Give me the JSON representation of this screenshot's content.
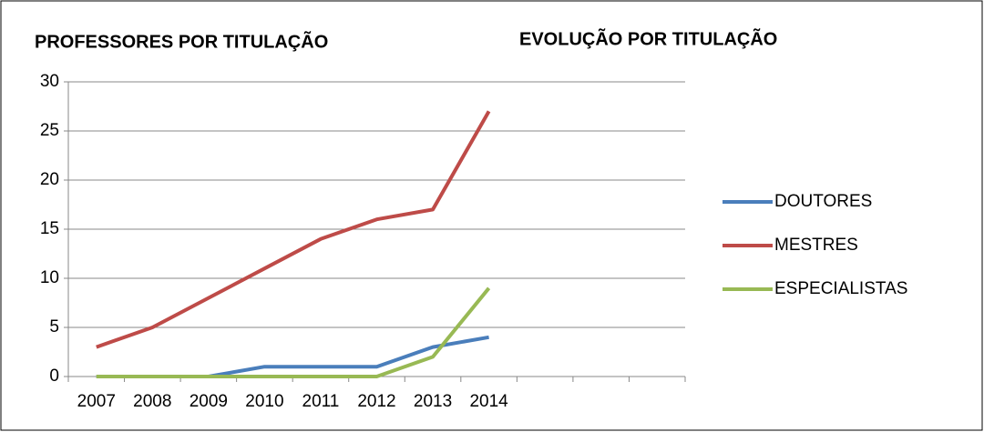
{
  "chart_data": {
    "type": "line",
    "titles": [
      "PROFESSORES POR TITULAÇÃO",
      "EVOLUÇÃO POR TITULAÇÃO"
    ],
    "categories": [
      "2007",
      "2008",
      "2009",
      "2010",
      "2011",
      "2012",
      "2013",
      "2014",
      null,
      null,
      null
    ],
    "series": [
      {
        "name": "DOUTORES",
        "color": "#4a7ebb",
        "values": [
          0,
          0,
          0,
          1,
          1,
          1,
          3,
          4,
          null,
          null,
          null
        ]
      },
      {
        "name": "MESTRES",
        "color": "#be4b48",
        "values": [
          3,
          5,
          8,
          11,
          14,
          16,
          17,
          27,
          null,
          null,
          null
        ]
      },
      {
        "name": "ESPECIALISTAS",
        "color": "#98b954",
        "values": [
          0,
          0,
          0,
          0,
          0,
          0,
          2,
          9,
          null,
          null,
          null
        ]
      }
    ],
    "ylim": [
      0,
      30
    ],
    "yticks": [
      0,
      5,
      10,
      15,
      20,
      25,
      30
    ],
    "grid": true,
    "legend": "right"
  }
}
